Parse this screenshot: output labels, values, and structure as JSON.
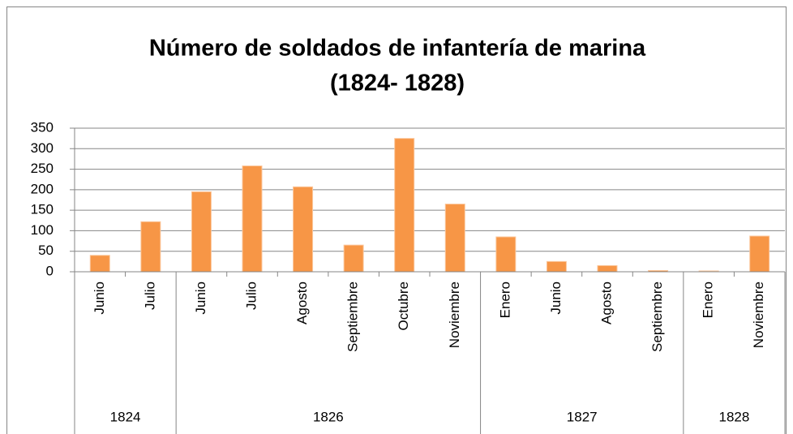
{
  "chart_data": {
    "type": "bar",
    "title": [
      "Número de soldados de infantería de marina",
      "(1824- 1828)"
    ],
    "groups": [
      {
        "name": "1824",
        "categories": [
          "Junio",
          "Julio"
        ],
        "values": [
          40,
          122
        ]
      },
      {
        "name": "1826",
        "categories": [
          "Junio",
          "Julio",
          "Agosto",
          "Septiembre",
          "Octubre",
          "Noviembre"
        ],
        "values": [
          195,
          258,
          207,
          65,
          325,
          165
        ]
      },
      {
        "name": "1827",
        "categories": [
          "Enero",
          "Junio",
          "Agosto",
          "Septiembre"
        ],
        "values": [
          85,
          25,
          15,
          3
        ]
      },
      {
        "name": "1828",
        "categories": [
          "Enero",
          "Noviembre"
        ],
        "values": [
          2,
          87
        ]
      }
    ],
    "color": "#f79646",
    "ylim": [
      0,
      350
    ],
    "yticks": [
      0,
      50,
      100,
      150,
      200,
      250,
      300,
      350
    ],
    "grid": true
  }
}
